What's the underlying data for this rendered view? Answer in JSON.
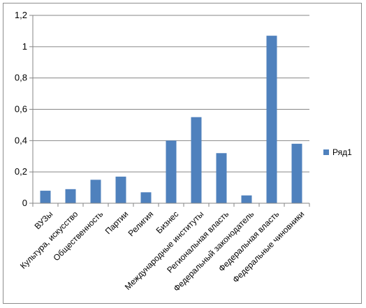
{
  "chart_data": {
    "type": "bar",
    "categories": [
      "ВУЗы",
      "Культура, искусство",
      "Общественность",
      "Партии",
      "Религия",
      "Бизнес",
      "Международные институты",
      "Региональная власть",
      "Федеральный законодатель",
      "Федеральная власть",
      "Федеральные чиновники"
    ],
    "series": [
      {
        "name": "Ряд1",
        "values": [
          0.08,
          0.09,
          0.15,
          0.17,
          0.07,
          0.4,
          0.55,
          0.32,
          0.05,
          1.07,
          0.38
        ]
      }
    ],
    "ylim": [
      0,
      1.2
    ],
    "yticks": [
      "0",
      "0,2",
      "0,4",
      "0,6",
      "0,8",
      "1",
      "1,2"
    ],
    "grid": true,
    "legend": "right",
    "colors": {
      "bar": "#4f81bd",
      "grid": "#868686",
      "axis": "#868686"
    }
  }
}
